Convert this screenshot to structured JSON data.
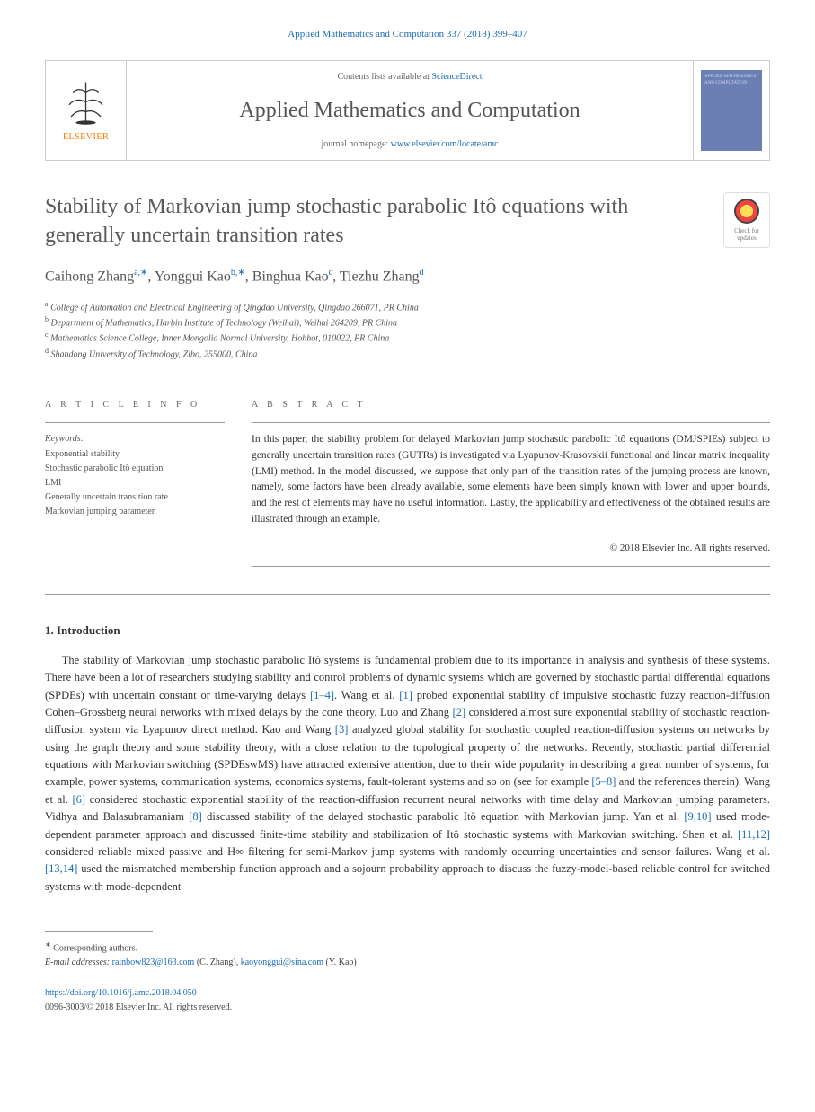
{
  "header": {
    "journal_ref": "Applied Mathematics and Computation 337 (2018) 399–407",
    "contents_prefix": "Contents lists available at ",
    "contents_link": "ScienceDirect",
    "journal_name": "Applied Mathematics and Computation",
    "homepage_prefix": "journal homepage: ",
    "homepage_link": "www.elsevier.com/locate/amc",
    "publisher": "ELSEVIER",
    "cover_text": "APPLIED MATHEMATICS AND COMPUTATION"
  },
  "check_updates": {
    "line1": "Check for",
    "line2": "updates"
  },
  "title": "Stability of Markovian jump stochastic parabolic Itô equations with generally uncertain transition rates",
  "authors": [
    {
      "name": "Caihong Zhang",
      "marks": "a,∗"
    },
    {
      "name": "Yonggui Kao",
      "marks": "b,∗"
    },
    {
      "name": "Binghua Kao",
      "marks": "c"
    },
    {
      "name": "Tiezhu Zhang",
      "marks": "d"
    }
  ],
  "affiliations": [
    {
      "mark": "a",
      "text": "College of Automation and Electrical Engineering of Qingdao University, Qingdao 266071, PR China"
    },
    {
      "mark": "b",
      "text": "Department of Mathematics, Harbin Institute of Technology (Weihai), Weihai 264209, PR China"
    },
    {
      "mark": "c",
      "text": "Mathematics Science College, Inner Mongolia Normal University, Hohhot, 010022, PR China"
    },
    {
      "mark": "d",
      "text": "Shandong University of Technology, Zibo, 255000, China"
    }
  ],
  "info": {
    "label": "A R T I C L E   I N F O",
    "keywords_label": "Keywords:",
    "keywords": [
      "Exponential stability",
      "Stochastic parabolic Itô equation",
      "LMI",
      "Generally uncertain transition rate",
      "Markovian jumping parameter"
    ]
  },
  "abstract": {
    "label": "A B S T R A C T",
    "text": "In this paper, the stability problem for delayed Markovian jump stochastic parabolic Itô equations (DMJSPIEs) subject to generally uncertain transition rates (GUTRs) is investigated via Lyapunov-Krasovskii functional and linear matrix inequality (LMI) method. In the model discussed, we suppose that only part of the transition rates of the jumping process are known, namely, some factors have been already available, some elements have been simply known with lower and upper bounds, and the rest of elements may have no useful information. Lastly, the applicability and effectiveness of the obtained results are illustrated through an example.",
    "copyright": "© 2018 Elsevier Inc. All rights reserved."
  },
  "intro": {
    "heading": "1. Introduction",
    "body_parts": [
      "The stability of Markovian jump stochastic parabolic Itô systems is fundamental problem due to its importance in analysis and synthesis of these systems. There have been a lot of researchers studying stability and control problems of dynamic systems which are governed by stochastic partial differential equations (SPDEs) with uncertain constant or time-varying delays ",
      ". Wang et al. ",
      " probed exponential stability of impulsive stochastic fuzzy reaction-diffusion Cohen–Grossberg neural networks with mixed delays by the cone theory. Luo and Zhang ",
      " considered almost sure exponential stability of stochastic reaction-diffusion system via Lyapunov direct method. Kao and Wang ",
      " analyzed global stability for stochastic coupled reaction-diffusion systems on networks by using the graph theory and some stability theory, with a close relation to the topological property of the networks. Recently, stochastic partial differential equations with Markovian switching (SPDEswMS) have attracted extensive attention, due to their wide popularity in describing a great number of systems, for example, power systems, communication systems, economics systems, fault-tolerant systems and so on (see for example ",
      " and the references therein). Wang et al. ",
      " considered stochastic exponential stability of the reaction-diffusion recurrent neural networks with time delay and Markovian jumping parameters. Vidhya and Balasubramaniam ",
      " discussed stability of the delayed stochastic parabolic Itô equation with Markovian jump. Yan et al. ",
      " used mode-dependent parameter approach and discussed finite-time stability and stabilization of Itô stochastic systems with Markovian switching. Shen et al. ",
      " considered reliable mixed passive and H∞ filtering for semi-Markov jump systems with randomly occurring uncertainties and sensor failures. Wang et al. ",
      " used the mismatched membership function approach and a sojourn probability approach to discuss the fuzzy-model-based reliable control for switched systems with mode-dependent"
    ],
    "refs": [
      "[1–4]",
      "[1]",
      "[2]",
      "[3]",
      "[5–8]",
      "[6]",
      "[8]",
      "[9,10]",
      "[11,12]",
      "[13,14]"
    ]
  },
  "footer": {
    "corresponding": "Corresponding authors.",
    "email_label": "E-mail addresses:",
    "emails": [
      {
        "addr": "rainbow823@163.com",
        "who": "(C. Zhang)"
      },
      {
        "addr": "kaoyonggui@sina.com",
        "who": "(Y. Kao)"
      }
    ],
    "doi": "https://doi.org/10.1016/j.amc.2018.04.050",
    "issn_line": "0096-3003/© 2018 Elsevier Inc. All rights reserved."
  },
  "colors": {
    "link": "#1a6bb5",
    "text": "#333333",
    "muted": "#666666",
    "orange": "#ff7700",
    "cover_bg": "#6b7fb5"
  }
}
